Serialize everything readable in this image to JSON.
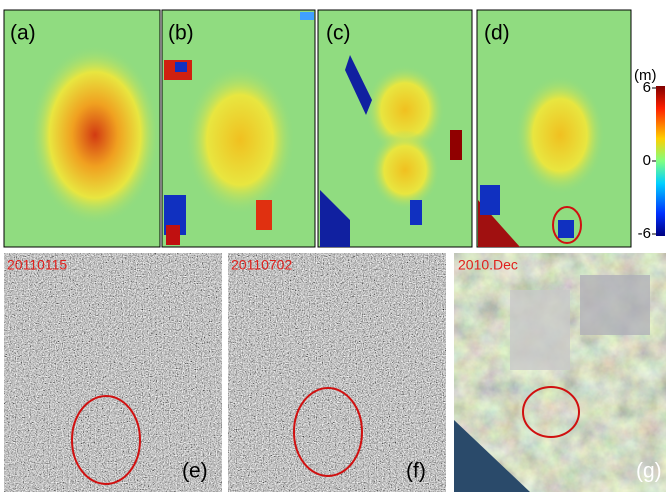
{
  "top_panels": [
    "(a)",
    "(b)",
    "(c)",
    "(d)"
  ],
  "bottom_panels": [
    {
      "date": "20110115",
      "label": "(e)"
    },
    {
      "date": "20110702",
      "label": "(f)"
    },
    {
      "date": "2010.Dec",
      "label": "(g)"
    }
  ],
  "colorbar": {
    "unit": "(m)",
    "lim": [
      -6,
      6
    ],
    "ticks": [
      6,
      0,
      -6
    ]
  }
}
